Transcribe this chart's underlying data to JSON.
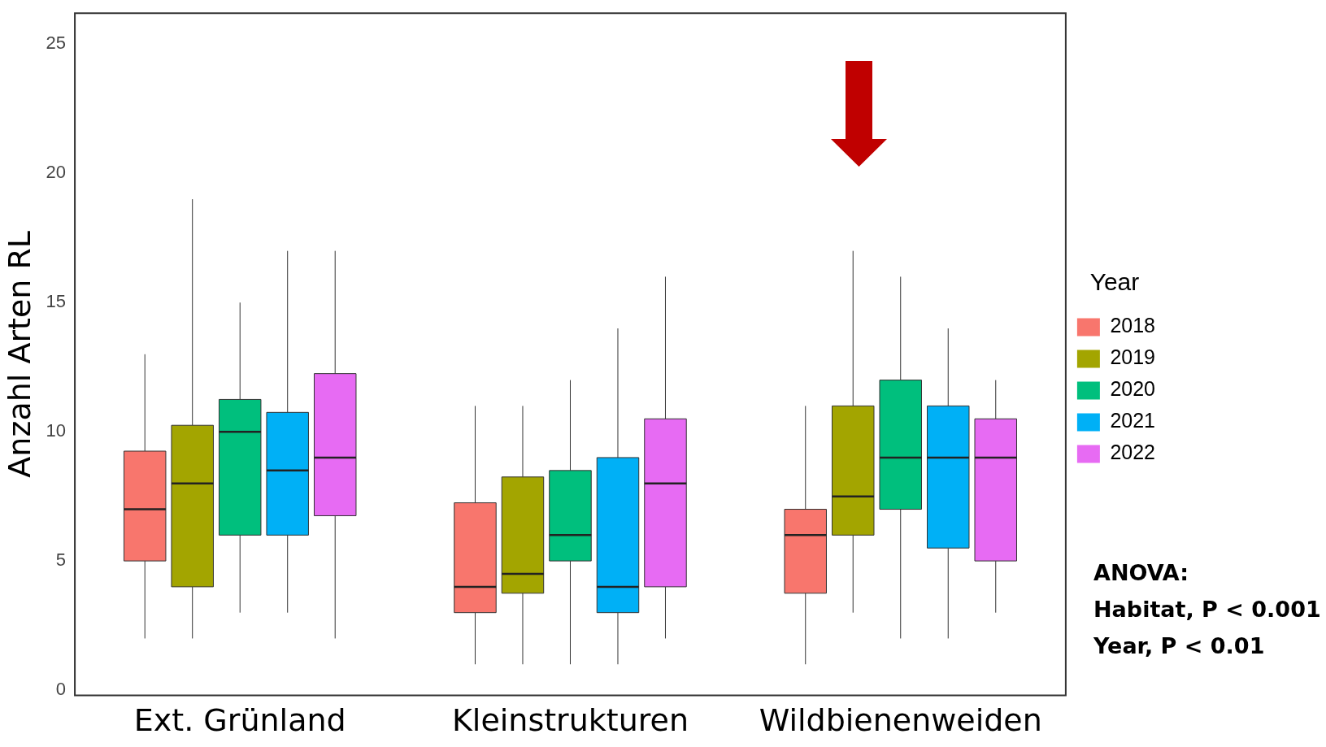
{
  "chart_data": {
    "type": "box",
    "ylabel": "Anzahl Arten RL",
    "categories": [
      "Ext. Grünland",
      "Kleinstrukturen",
      "Wildbienenweiden"
    ],
    "legend_title": "Year",
    "legend": "right",
    "grid": false,
    "ylim": [
      -0.2,
      26.2
    ],
    "yticks": [
      0,
      5,
      10,
      15,
      20,
      25
    ],
    "annotations": [
      "ANOVA:",
      "Habitat, P < 0.001",
      "Year, P < 0.01"
    ],
    "series": [
      {
        "name": "2018",
        "color": "#f8766d",
        "boxes": [
          {
            "low": 2,
            "q1": 5,
            "median": 7,
            "q3": 9.25,
            "high": 13
          },
          {
            "low": 1,
            "q1": 3,
            "median": 4,
            "q3": 7.25,
            "high": 11
          },
          {
            "low": 1,
            "q1": 3.75,
            "median": 6,
            "q3": 7,
            "high": 11
          }
        ]
      },
      {
        "name": "2019",
        "color": "#a3a500",
        "boxes": [
          {
            "low": 2,
            "q1": 4,
            "median": 8,
            "q3": 10.25,
            "high": 19
          },
          {
            "low": 1,
            "q1": 3.75,
            "median": 4.5,
            "q3": 8.25,
            "high": 11
          },
          {
            "low": 3,
            "q1": 6,
            "median": 7.5,
            "q3": 11,
            "high": 17
          }
        ]
      },
      {
        "name": "2020",
        "color": "#00bf7d",
        "boxes": [
          {
            "low": 3,
            "q1": 6,
            "median": 10,
            "q3": 11.25,
            "high": 15
          },
          {
            "low": 1,
            "q1": 5,
            "median": 6,
            "q3": 8.5,
            "high": 12
          },
          {
            "low": 2,
            "q1": 7,
            "median": 9,
            "q3": 12,
            "high": 16
          }
        ]
      },
      {
        "name": "2021",
        "color": "#00b0f6",
        "boxes": [
          {
            "low": 3,
            "q1": 6,
            "median": 8.5,
            "q3": 10.75,
            "high": 17
          },
          {
            "low": 1,
            "q1": 3,
            "median": 4,
            "q3": 9,
            "high": 14
          },
          {
            "low": 2,
            "q1": 5.5,
            "median": 9,
            "q3": 11,
            "high": 14
          }
        ]
      },
      {
        "name": "2022",
        "color": "#e76bf3",
        "boxes": [
          {
            "low": 2,
            "q1": 6.75,
            "median": 9,
            "q3": 12.25,
            "high": 17
          },
          {
            "low": 2,
            "q1": 4,
            "median": 8,
            "q3": 10.5,
            "high": 16
          },
          {
            "low": 3,
            "q1": 5,
            "median": 9,
            "q3": 10.5,
            "high": 12
          }
        ]
      }
    ]
  }
}
